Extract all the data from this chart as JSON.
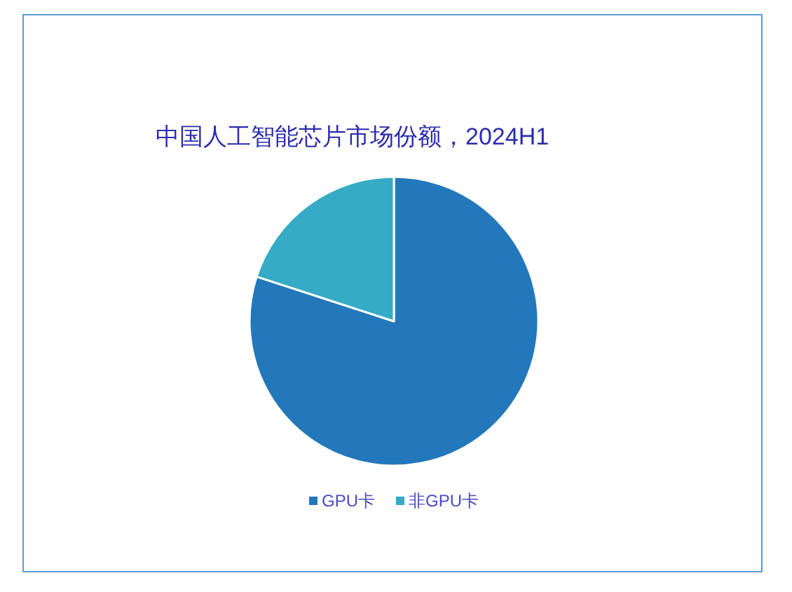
{
  "chart_data": {
    "type": "pie",
    "title": "中国人工智能芯片市场份额，2024H1",
    "categories": [
      "GPU卡",
      "非GPU卡"
    ],
    "values": [
      80,
      20
    ],
    "colors": [
      "#2378bb",
      "#35abc6"
    ],
    "legend": "bottom"
  }
}
